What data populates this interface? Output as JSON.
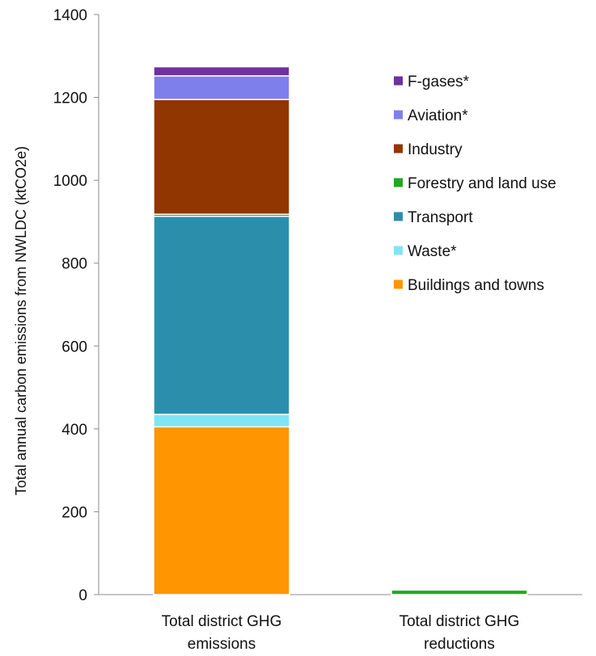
{
  "chart_data": {
    "type": "bar",
    "stacked": true,
    "categories": [
      "Total district GHG emissions",
      "Total district GHG reductions"
    ],
    "category_label_lines": [
      [
        "Total district GHG",
        "emissions"
      ],
      [
        "Total district GHG",
        "reductions"
      ]
    ],
    "ylabel": "Total annual carbon emissions from NWLDC (ktCO2e)",
    "xlabel": "",
    "ylim": [
      0,
      1400
    ],
    "yticks": [
      0,
      200,
      400,
      600,
      800,
      1000,
      1200,
      1400
    ],
    "grid": false,
    "legend_position": "right",
    "legend_order": [
      "F-gases*",
      "Aviation*",
      "Industry",
      "Forestry and land use",
      "Transport",
      "Waste*",
      "Buildings and towns"
    ],
    "series": [
      {
        "name": "Buildings and towns",
        "color": "#ff9500",
        "values": [
          405,
          0
        ]
      },
      {
        "name": "Waste*",
        "color": "#7fe5f5",
        "values": [
          30,
          0
        ]
      },
      {
        "name": "Transport",
        "color": "#2b8fab",
        "values": [
          478,
          0
        ]
      },
      {
        "name": "Forestry and land use",
        "color": "#22a81e",
        "values": [
          5,
          11
        ]
      },
      {
        "name": "Industry",
        "color": "#923600",
        "values": [
          277,
          0
        ]
      },
      {
        "name": "Aviation*",
        "color": "#7f7fec",
        "values": [
          57,
          0
        ]
      },
      {
        "name": "F-gases*",
        "color": "#7030a0",
        "values": [
          22,
          0
        ]
      }
    ]
  }
}
